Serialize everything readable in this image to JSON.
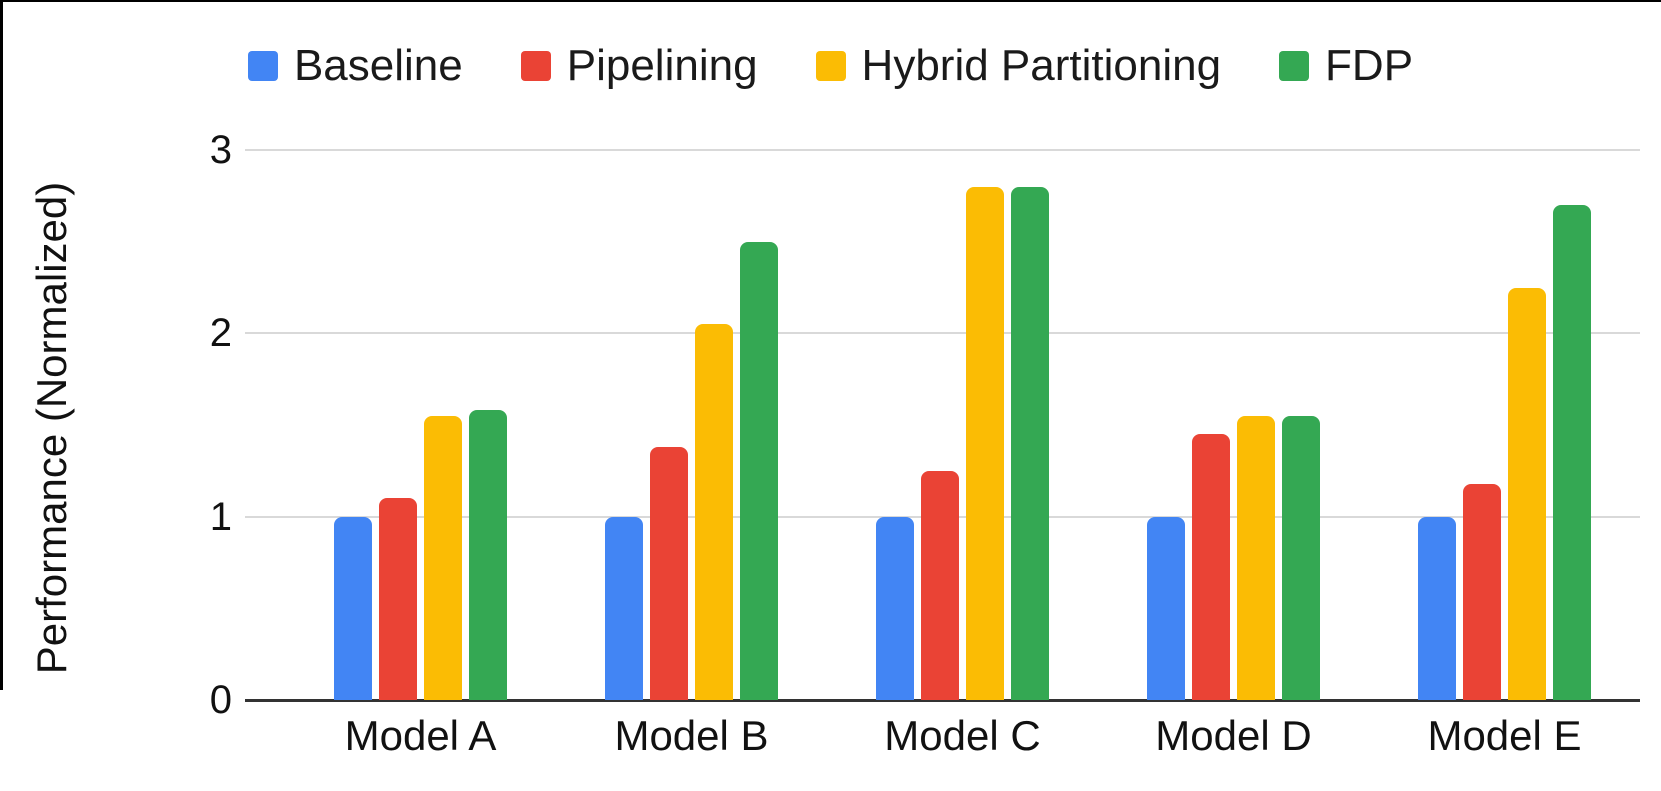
{
  "chart_data": {
    "type": "bar",
    "title": "",
    "xlabel": "",
    "ylabel": "Performance (Normalized)",
    "categories": [
      "Model A",
      "Model B",
      "Model C",
      "Model D",
      "Model E"
    ],
    "series": [
      {
        "name": "Baseline",
        "color": "#4285F4",
        "values": [
          1.0,
          1.0,
          1.0,
          1.0,
          1.0
        ]
      },
      {
        "name": "Pipelining",
        "color": "#EA4335",
        "values": [
          1.1,
          1.38,
          1.25,
          1.45,
          1.18
        ]
      },
      {
        "name": "Hybrid Partitioning",
        "color": "#FBBC04",
        "values": [
          1.55,
          2.05,
          2.8,
          1.55,
          2.25
        ]
      },
      {
        "name": "FDP",
        "color": "#34A853",
        "values": [
          1.58,
          2.5,
          2.8,
          1.55,
          2.7
        ]
      }
    ],
    "ylim": [
      0,
      3
    ],
    "yticks": [
      0,
      1,
      2,
      3
    ],
    "grid": true,
    "legend_position": "top",
    "gridline_color": "#d9d9d9",
    "axis_line_color": "#333333",
    "text_color": "#111111"
  }
}
